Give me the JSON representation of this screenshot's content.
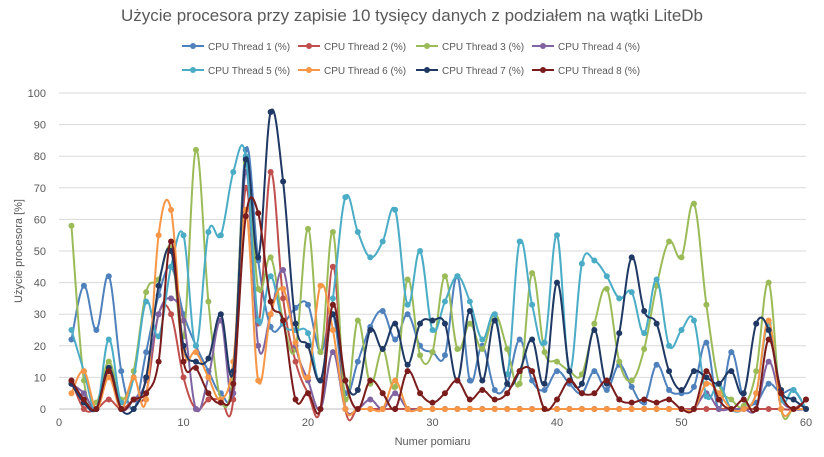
{
  "chart_data": {
    "type": "line",
    "title": "Użycie procesora przy zapisie 10 tysięcy danych z podziałem na wątki  LiteDb",
    "xlabel": "Numer pomiaru",
    "ylabel": "Użycie procesora [%]",
    "xlim": [
      0,
      60
    ],
    "ylim": [
      0,
      100
    ],
    "xticks": [
      0,
      10,
      20,
      30,
      40,
      50,
      60
    ],
    "yticks": [
      0,
      10,
      20,
      30,
      40,
      50,
      60,
      70,
      80,
      90,
      100
    ],
    "grid": "horizontal",
    "legend_position": "top",
    "smooth": true,
    "series": [
      {
        "name": "CPU Thread 1 (%)",
        "color": "#4f81bd",
        "values": [
          22,
          39,
          25,
          42,
          12,
          0,
          18,
          36,
          45,
          30,
          20,
          12,
          5,
          10,
          82,
          47,
          26,
          27,
          32,
          33,
          18,
          30,
          5,
          15,
          26,
          31,
          22,
          30,
          20,
          18,
          17,
          42,
          9,
          20,
          6,
          8,
          22,
          9,
          6,
          12,
          8,
          5,
          12,
          6,
          14,
          7,
          2,
          14,
          6,
          5,
          7,
          21,
          0,
          18,
          3,
          2,
          8,
          5,
          6,
          0
        ]
      },
      {
        "name": "CPU Thread 2 (%)",
        "color": "#c0504d",
        "values": [
          9,
          0,
          0,
          3,
          0,
          3,
          5,
          30,
          30,
          10,
          0,
          3,
          3,
          3,
          70,
          27,
          75,
          35,
          15,
          5,
          0,
          45,
          0,
          0,
          0,
          0,
          0,
          0,
          0,
          0,
          0,
          0,
          0,
          0,
          0,
          0,
          0,
          0,
          0,
          0,
          0,
          0,
          0,
          0,
          0,
          0,
          0,
          0,
          0,
          0,
          0,
          0,
          0,
          0,
          0,
          0,
          0,
          0,
          0,
          3
        ]
      },
      {
        "name": "CPU Thread 3 (%)",
        "color": "#9bbb59",
        "values": [
          58,
          9,
          2,
          15,
          3,
          12,
          37,
          41,
          51,
          23,
          82,
          34,
          3,
          12,
          78,
          38,
          48,
          28,
          19,
          57,
          18,
          56,
          3,
          28,
          8,
          19,
          7,
          41,
          17,
          18,
          42,
          19,
          27,
          19,
          30,
          19,
          8,
          43,
          18,
          15,
          12,
          11,
          27,
          38,
          15,
          9,
          19,
          39,
          53,
          48,
          65,
          33,
          8,
          3,
          1,
          12,
          40,
          0,
          0,
          0
        ]
      },
      {
        "name": "CPU Thread 4 (%)",
        "color": "#8064a2",
        "values": [
          8,
          5,
          0,
          12,
          0,
          3,
          9,
          30,
          35,
          28,
          0,
          10,
          28,
          5,
          75,
          20,
          30,
          44,
          20,
          9,
          0,
          18,
          0,
          0,
          3,
          0,
          5,
          0,
          0,
          0,
          0,
          0,
          0,
          0,
          0,
          0,
          0,
          0,
          0,
          0,
          0,
          0,
          0,
          0,
          0,
          0,
          0,
          0,
          0,
          0,
          0,
          5,
          0,
          0,
          0,
          0,
          15,
          3,
          0,
          0
        ]
      },
      {
        "name": "CPU Thread 5 (%)",
        "color": "#4bacc6",
        "values": [
          25,
          12,
          0,
          22,
          2,
          10,
          34,
          23,
          45,
          55,
          20,
          56,
          55,
          75,
          80,
          28,
          42,
          27,
          25,
          24,
          9,
          35,
          67,
          56,
          48,
          53,
          63,
          33,
          50,
          25,
          34,
          42,
          34,
          22,
          30,
          11,
          53,
          33,
          21,
          55,
          12,
          46,
          47,
          42,
          35,
          37,
          24,
          41,
          20,
          25,
          28,
          4,
          8,
          0,
          0,
          5,
          27,
          3,
          6,
          0
        ]
      },
      {
        "name": "CPU Thread 6 (%)",
        "color": "#f79646",
        "values": [
          5,
          12,
          0,
          10,
          0,
          10,
          3,
          55,
          63,
          19,
          18,
          10,
          3,
          15,
          63,
          9,
          30,
          38,
          21,
          10,
          39,
          25,
          0,
          0,
          0,
          0,
          9,
          0,
          0,
          0,
          0,
          0,
          0,
          0,
          0,
          0,
          0,
          0,
          0,
          0,
          0,
          0,
          0,
          0,
          0,
          0,
          0,
          0,
          0,
          0,
          0,
          8,
          5,
          0,
          0,
          5,
          28,
          0,
          0,
          0
        ]
      },
      {
        "name": "CPU Thread 7 (%)",
        "color": "#1f3864",
        "values": [
          8,
          2,
          0,
          13,
          0,
          0,
          10,
          39,
          50,
          20,
          15,
          16,
          30,
          12,
          79,
          48,
          94,
          72,
          27,
          20,
          9,
          30,
          9,
          6,
          25,
          19,
          27,
          14,
          27,
          28,
          27,
          9,
          31,
          9,
          28,
          8,
          12,
          22,
          8,
          40,
          12,
          8,
          25,
          8,
          24,
          48,
          31,
          27,
          12,
          6,
          12,
          10,
          8,
          12,
          5,
          27,
          25,
          6,
          3,
          0
        ]
      },
      {
        "name": "CPU Thread 8 (%)",
        "color": "#7b1c1c",
        "values": [
          9,
          3,
          0,
          12,
          0,
          3,
          5,
          15,
          53,
          15,
          13,
          5,
          2,
          8,
          61,
          62,
          34,
          28,
          3,
          5,
          0,
          33,
          9,
          0,
          9,
          5,
          0,
          12,
          5,
          2,
          5,
          9,
          3,
          6,
          3,
          5,
          12,
          12,
          0,
          3,
          9,
          5,
          5,
          9,
          3,
          2,
          3,
          2,
          3,
          0,
          0,
          12,
          3,
          0,
          3,
          0,
          22,
          5,
          0,
          3
        ]
      }
    ]
  }
}
